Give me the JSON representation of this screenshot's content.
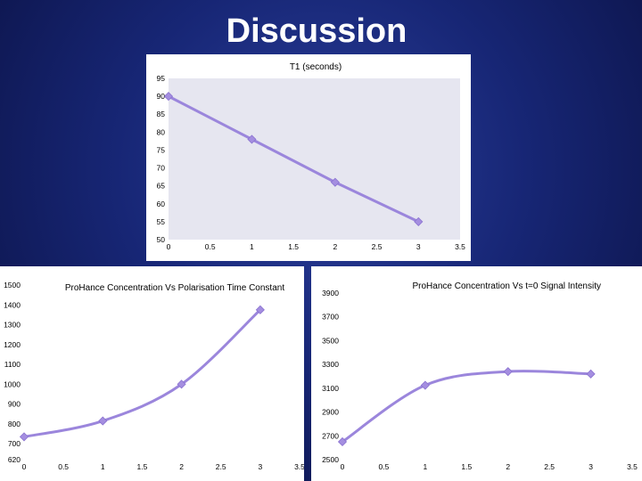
{
  "slide": {
    "title": "Discussion"
  },
  "chart_data": [
    {
      "id": "t1",
      "type": "line",
      "title": "T1 (seconds)",
      "x": [
        0,
        1,
        2,
        3
      ],
      "series": [
        {
          "values": [
            90,
            78,
            66,
            55
          ]
        }
      ],
      "xlim": [
        0,
        3.5
      ],
      "ylim": [
        50,
        95
      ],
      "xticks": [
        0,
        0.5,
        1,
        1.5,
        2,
        2.5,
        3,
        3.5
      ],
      "xtick_labels": [
        "0",
        "0.5",
        "1",
        "1.5",
        "2",
        "2.5",
        "3",
        "3.5"
      ],
      "yticks": [
        50,
        55,
        60,
        65,
        70,
        75,
        80,
        85,
        90,
        95
      ],
      "ytick_labels": [
        "50",
        "55",
        "60",
        "65",
        "70",
        "75",
        "80",
        "85",
        "90",
        "95"
      ],
      "smooth": false,
      "grid": false,
      "colors": {
        "plot_bg": "#e6e6f0",
        "line": "#9b86dc",
        "marker": "#a48ee0"
      }
    },
    {
      "id": "polarisation",
      "type": "line",
      "title": "ProHance Concentration Vs Polarisation Time Constant",
      "x": [
        0,
        1,
        2,
        3
      ],
      "series": [
        {
          "values": [
            735,
            815,
            1000,
            1375
          ]
        }
      ],
      "xlim": [
        0,
        3.5
      ],
      "ylim": [
        620,
        1500
      ],
      "xticks": [
        0,
        0.5,
        1,
        1.5,
        2,
        2.5,
        3,
        3.5
      ],
      "xtick_labels": [
        "0",
        "0.5",
        "1",
        "1.5",
        "2",
        "2.5",
        "3",
        "3.5"
      ],
      "yticks": [
        620,
        700,
        800,
        900,
        1000,
        1100,
        1200,
        1300,
        1400,
        1500
      ],
      "ytick_labels": [
        "620",
        "700",
        "800",
        "900",
        "1000",
        "1100",
        "1200",
        "1300",
        "1400",
        "1500"
      ],
      "smooth": true,
      "grid": false,
      "colors": {
        "plot_bg": "#ffffff",
        "line": "#9b86dc",
        "marker": "#a48ee0"
      }
    },
    {
      "id": "signal",
      "type": "line",
      "title": "ProHance Concentration Vs t=0 Signal Intensity",
      "x": [
        0,
        1,
        2,
        3
      ],
      "series": [
        {
          "values": [
            2650,
            3125,
            3240,
            3220
          ]
        }
      ],
      "xlim": [
        0,
        3.5
      ],
      "ylim": [
        2500,
        3900
      ],
      "xticks": [
        0,
        0.5,
        1,
        1.5,
        2,
        2.5,
        3,
        3.5
      ],
      "xtick_labels": [
        "0",
        "0.5",
        "1",
        "1.5",
        "2",
        "2.5",
        "3",
        "3.5"
      ],
      "yticks": [
        2500,
        2700,
        2900,
        3100,
        3300,
        3500,
        3700,
        3900
      ],
      "ytick_labels": [
        "2500",
        "2700",
        "2900",
        "3100",
        "3300",
        "3500",
        "3700",
        "3900"
      ],
      "smooth": true,
      "grid": false,
      "colors": {
        "plot_bg": "#ffffff",
        "line": "#9b86dc",
        "marker": "#a48ee0"
      }
    }
  ]
}
